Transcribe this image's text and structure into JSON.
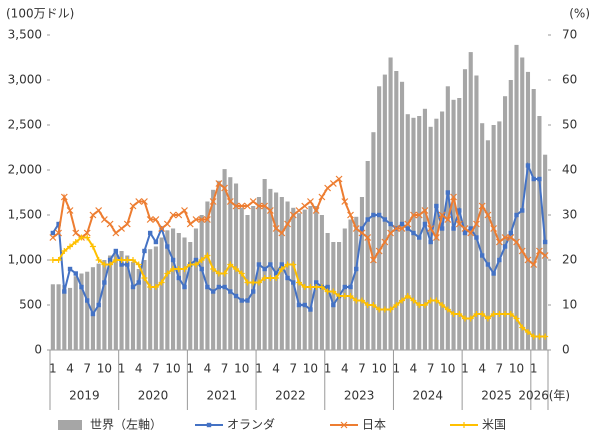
{
  "chart_data": {
    "type": "bar-line",
    "y_unit": "(100万ドル)",
    "y2_unit": "(%)",
    "categories": [
      "1",
      null,
      null,
      "4",
      null,
      null,
      "7",
      null,
      null,
      "10",
      null,
      null,
      "1",
      null,
      null,
      "4",
      null,
      null,
      "7",
      null,
      null,
      "10",
      null,
      null,
      "1",
      null,
      null,
      "4",
      null,
      null,
      "7",
      null,
      null,
      "10",
      null,
      null,
      "1",
      null,
      null,
      "4",
      null,
      null,
      "7",
      null,
      null,
      "10",
      null,
      null,
      "1",
      null,
      null,
      "4",
      null,
      null,
      "7",
      null,
      null,
      "10",
      null,
      null,
      "1",
      null,
      null,
      "4",
      null,
      null,
      "7",
      null,
      null,
      "10",
      null,
      null,
      "1",
      null,
      null,
      "4",
      null,
      null,
      "7",
      null,
      null,
      "10",
      null,
      null,
      "1",
      null,
      null
    ],
    "years": [
      "2019",
      "2020",
      "2021",
      "2022",
      "2023",
      "2024",
      "2025",
      "2026"
    ],
    "x_unit": "(年)",
    "ylim": [
      0,
      3500
    ],
    "yticks": [
      0,
      500,
      {
        "value": 1000,
        "label": "1,000"
      },
      {
        "value": 1500,
        "label": "1,500"
      },
      {
        "value": 2000,
        "label": "2,000"
      },
      {
        "value": 2500,
        "label": "2,500"
      },
      {
        "value": 3000,
        "label": "3,000"
      },
      {
        "value": 3500,
        "label": "3,500"
      }
    ],
    "y2lim": [
      0,
      70
    ],
    "y2ticks": [
      0,
      10,
      20,
      30,
      40,
      50,
      60,
      70
    ],
    "legend": "bottom",
    "series": [
      {
        "name": "世界（左軸）",
        "kind": "bar",
        "color": "#a6a6a6",
        "values": [
          730,
          730,
          720,
          690,
          820,
          850,
          870,
          920,
          960,
          1000,
          1050,
          1100,
          1100,
          1050,
          980,
          900,
          1000,
          1120,
          1150,
          1250,
          1330,
          1350,
          1300,
          1250,
          1200,
          1350,
          1500,
          1650,
          1780,
          1880,
          2010,
          1920,
          1850,
          1580,
          1500,
          1600,
          1700,
          1900,
          1790,
          1750,
          1700,
          1650,
          1580,
          1520,
          1560,
          1600,
          1600,
          1500,
          1300,
          1200,
          1200,
          1350,
          1450,
          1480,
          1700,
          2100,
          2420,
          2930,
          3060,
          3250,
          3100,
          2980,
          2620,
          2580,
          2600,
          2680,
          2480,
          2570,
          2650,
          2930,
          2780,
          2800,
          3120,
          3310,
          3050,
          2520,
          2330,
          2500,
          2540,
          2820,
          3000,
          3390,
          3250,
          3090,
          2900,
          2600,
          2170
        ]
      },
      {
        "name": "オランダ",
        "kind": "line",
        "marker": "square",
        "axis": "y2",
        "color": "#4472c4",
        "values": [
          26,
          28,
          13,
          18,
          17,
          14,
          11,
          8,
          10,
          15,
          20,
          22,
          19,
          19,
          14,
          15,
          22,
          26,
          24,
          27,
          23,
          20,
          16,
          14,
          19,
          20,
          18,
          14,
          13,
          14,
          14,
          13,
          12,
          11,
          11,
          13,
          19,
          18,
          19,
          17,
          19,
          16,
          15,
          10,
          10,
          9,
          15,
          14,
          14,
          10,
          12,
          14,
          14,
          18,
          27,
          29,
          30,
          30,
          29,
          28,
          27,
          28,
          27,
          26,
          25,
          28,
          24,
          32,
          27,
          35,
          27,
          31,
          26,
          27,
          25,
          21,
          19,
          17,
          20,
          23,
          26,
          30,
          31,
          41,
          38,
          38,
          24
        ]
      },
      {
        "name": "日本",
        "kind": "line",
        "marker": "x",
        "axis": "y2",
        "color": "#ed7d31",
        "values": [
          25,
          26,
          34,
          31,
          26,
          25,
          26,
          30,
          31,
          29,
          28,
          26,
          27,
          28,
          32,
          33,
          33,
          29,
          29,
          27,
          28,
          30,
          30,
          31,
          28,
          29,
          29,
          29,
          33,
          37,
          36,
          33,
          32,
          32,
          32,
          33,
          32,
          32,
          31,
          27,
          26,
          28,
          30,
          31,
          32,
          33,
          31,
          34,
          36,
          37,
          38,
          33,
          30,
          27,
          26,
          25,
          20,
          22,
          24,
          26,
          27,
          27,
          28,
          30,
          30,
          31,
          27,
          25,
          30,
          29,
          34,
          28,
          27,
          26,
          28,
          32,
          30,
          27,
          24,
          25,
          25,
          24,
          22,
          20,
          19,
          22,
          21
        ]
      },
      {
        "name": "米国",
        "kind": "line",
        "marker": "plus",
        "axis": "y2",
        "color": "#ffc000",
        "values": [
          20,
          20,
          22,
          23,
          24,
          25,
          25,
          23,
          20,
          19,
          19,
          20,
          20,
          20,
          20,
          19,
          16,
          14,
          14,
          15,
          17,
          18,
          18,
          18,
          19,
          19,
          20,
          21,
          18,
          17,
          17,
          19,
          18,
          17,
          15,
          15,
          15,
          16,
          16,
          16,
          18,
          19,
          19,
          15,
          14,
          14,
          14,
          14,
          13,
          13,
          12,
          12,
          12,
          11,
          11,
          10,
          10,
          9,
          9,
          9,
          10,
          11,
          12,
          11,
          10,
          10,
          11,
          11,
          10,
          9,
          8,
          8,
          7,
          7,
          8,
          8,
          7,
          8,
          8,
          8,
          8,
          7,
          5,
          4,
          3,
          3,
          3
        ]
      }
    ]
  }
}
